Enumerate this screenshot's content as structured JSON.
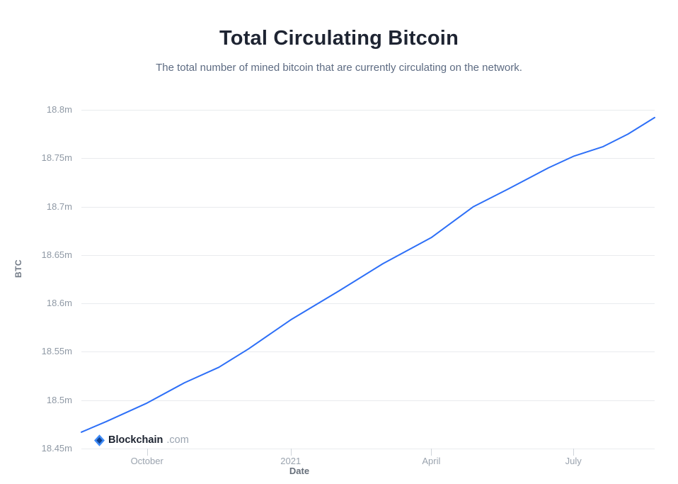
{
  "page": {
    "title": "Total Circulating Bitcoin",
    "subtitle": "The total number of mined bitcoin that are currently circulating on the network."
  },
  "branding": {
    "logo_icon": "blockchain-diamond-icon",
    "logo_text_primary": "Blockchain",
    "logo_text_secondary": ".com"
  },
  "chart_data": {
    "type": "line",
    "title": "Total Circulating Bitcoin",
    "subtitle": "The total number of mined bitcoin that are currently circulating on the network.",
    "xlabel": "Date",
    "ylabel": "BTC",
    "y_unit": "millions of BTC (m)",
    "ylim": [
      18.45,
      18.8
    ],
    "x_domain": [
      "2020-08-20",
      "2021-08-22"
    ],
    "grid": "horizontal",
    "legend": "none",
    "line_color": "#2d6ff7",
    "gridline_color": "#e9ebee",
    "tick_mark_color": "#cfd4da",
    "y_ticks": [
      {
        "label": "18.45m",
        "value": 18.45
      },
      {
        "label": "18.5m",
        "value": 18.5
      },
      {
        "label": "18.55m",
        "value": 18.55
      },
      {
        "label": "18.6m",
        "value": 18.6
      },
      {
        "label": "18.65m",
        "value": 18.65
      },
      {
        "label": "18.7m",
        "value": 18.7
      },
      {
        "label": "18.75m",
        "value": 18.75
      },
      {
        "label": "18.8m",
        "value": 18.8
      }
    ],
    "x_ticks": [
      {
        "label": "October",
        "date": "2020-10-01"
      },
      {
        "label": "2021",
        "date": "2021-01-01"
      },
      {
        "label": "April",
        "date": "2021-04-01"
      },
      {
        "label": "July",
        "date": "2021-07-01"
      }
    ],
    "series_name": "Total Circulating Bitcoin (millions)",
    "points": [
      [
        "2020-08-20",
        18.467
      ],
      [
        "2020-09-05",
        18.478
      ],
      [
        "2020-10-01",
        18.497
      ],
      [
        "2020-10-25",
        18.518
      ],
      [
        "2020-11-16",
        18.534
      ],
      [
        "2020-12-05",
        18.553
      ],
      [
        "2021-01-01",
        18.583
      ],
      [
        "2021-02-01",
        18.613
      ],
      [
        "2021-03-01",
        18.641
      ],
      [
        "2021-04-01",
        18.668
      ],
      [
        "2021-04-28",
        18.7
      ],
      [
        "2021-05-20",
        18.718
      ],
      [
        "2021-06-15",
        18.74
      ],
      [
        "2021-07-01",
        18.752
      ],
      [
        "2021-07-20",
        18.762
      ],
      [
        "2021-08-05",
        18.775
      ],
      [
        "2021-08-22",
        18.792
      ]
    ]
  }
}
